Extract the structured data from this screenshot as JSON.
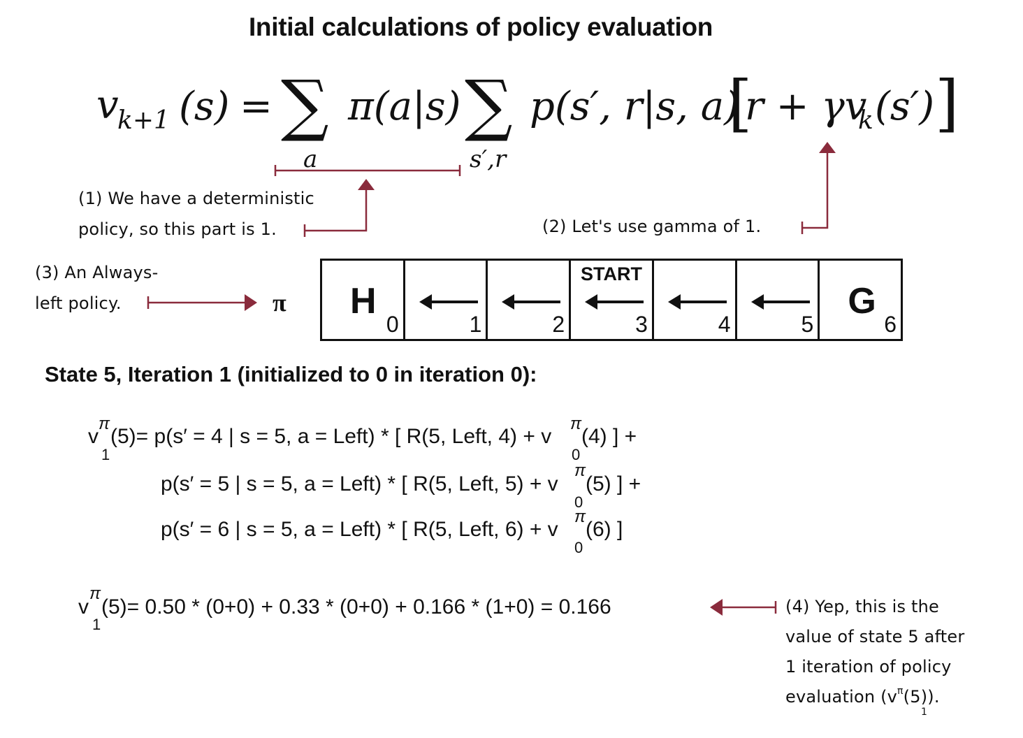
{
  "title": "Initial calculations of policy evaluation",
  "colors": {
    "annotation": "#8a2b3c",
    "text": "#111111"
  },
  "formula": {
    "lhs_v": "v",
    "lhs_sub": "k+1",
    "lhs_arg": "(s)",
    "equals": "=",
    "sum1": "∑",
    "sum1_index": "a",
    "policy": "π(a|s)",
    "sum2": "∑",
    "sum2_index": "s′,r",
    "transition": "p(s′, r|s, a)",
    "bracket_open": "[",
    "bracket_body_r": "r + γv",
    "bracket_body_sub": "k",
    "bracket_body_arg": "(s′)",
    "bracket_close": "]"
  },
  "annotations": {
    "note1_line1": "(1) We have a deterministic",
    "note1_line2": "policy, so this part is 1.",
    "note2": "(2) Let's use gamma of 1.",
    "note3_line1": "(3) An Always-",
    "note3_line2": "left policy.",
    "note4_line1": "(4) Yep, this is the",
    "note4_line2": "value of state 5 after",
    "note4_line3": "1 iteration of policy",
    "note4_line4": "evaluation (v",
    "note4_sup": "π",
    "note4_tail": "(5)).",
    "note4_sub": "1"
  },
  "policy_symbol": "π",
  "grid": {
    "cells": [
      {
        "big": "H",
        "number": "0"
      },
      {
        "arrow": "left-arrow",
        "number": "1"
      },
      {
        "arrow": "left-arrow",
        "number": "2"
      },
      {
        "label": "START",
        "arrow": "left-arrow",
        "number": "3"
      },
      {
        "arrow": "left-arrow",
        "number": "4"
      },
      {
        "arrow": "left-arrow",
        "number": "5"
      },
      {
        "big": "G",
        "number": "6"
      }
    ]
  },
  "heading": "State 5, Iteration 1 (initialized to 0 in iteration 0):",
  "equations": {
    "v": "v",
    "pi": "π",
    "sub1": "1",
    "sub0": "0",
    "line1_a": "(5)= p(s′ = 4 | s = 5, a = Left) * [ R(5, Left, 4) + v",
    "line1_b": "(4) ]  +",
    "line2_a": "p(s′ = 5 | s = 5, a = Left) * [ R(5, Left, 5) + v",
    "line2_b": "(5) ]  +",
    "line3_a": "p(s′ = 6 | s = 5, a = Left) * [ R(5, Left, 6) + v",
    "line3_b": "(6) ]",
    "result": "(5)= 0.50 * (0+0)   +   0.33 * (0+0)   +   0.166 * (1+0)  =  0.166"
  }
}
